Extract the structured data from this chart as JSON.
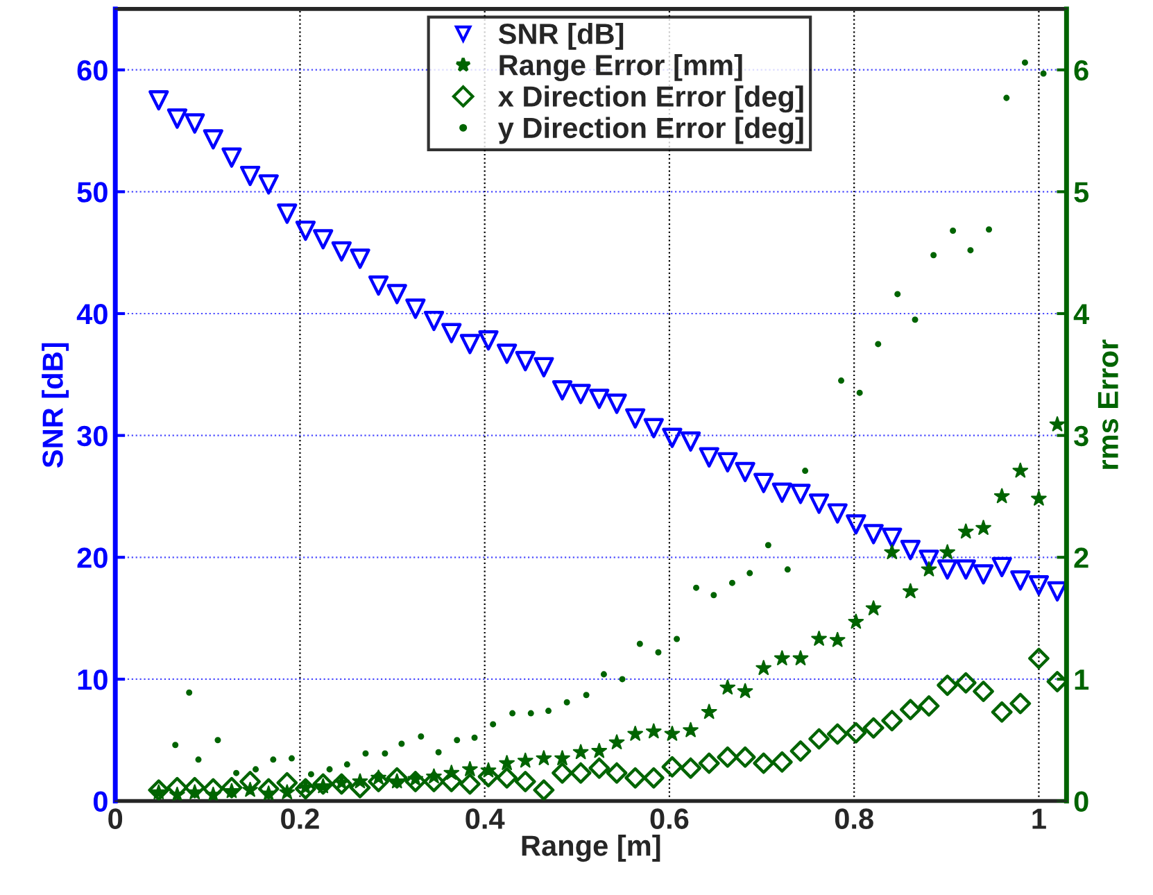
{
  "chart_data": {
    "type": "scatter",
    "xlabel": "Range [m]",
    "ylabel": "SNR [dB]",
    "y2label": "rms Error",
    "x": [
      0.047,
      0.067,
      0.086,
      0.106,
      0.126,
      0.146,
      0.166,
      0.186,
      0.206,
      0.225,
      0.245,
      0.265,
      0.285,
      0.305,
      0.325,
      0.345,
      0.364,
      0.384,
      0.404,
      0.424,
      0.444,
      0.464,
      0.484,
      0.504,
      0.524,
      0.543,
      0.563,
      0.583,
      0.603,
      0.623,
      0.643,
      0.663,
      0.682,
      0.702,
      0.722,
      0.742,
      0.762,
      0.782,
      0.802,
      0.821,
      0.841,
      0.861,
      0.881,
      0.901,
      0.921,
      0.94,
      0.96,
      0.98,
      1.0,
      1.02
    ],
    "series": [
      {
        "name": "SNR [dB]",
        "color": "#0000ff",
        "marker": "triangle",
        "values": [
          57.5,
          56.0,
          55.6,
          54.3,
          52.8,
          51.3,
          50.6,
          48.2,
          46.8,
          46.1,
          45.1,
          44.5,
          42.3,
          41.6,
          40.4,
          39.4,
          38.4,
          37.5,
          37.8,
          36.7,
          36.1,
          35.6,
          33.7,
          33.4,
          33.0,
          32.6,
          31.4,
          30.6,
          29.8,
          29.5,
          28.2,
          27.8,
          27.0,
          26.1,
          25.3,
          25.2,
          24.4,
          23.6,
          22.7,
          21.9,
          21.6,
          20.6,
          19.8,
          19.0,
          19.0,
          18.6,
          19.2,
          18.1,
          17.7,
          17.2
        ]
      },
      {
        "name": "Range Error [mm]",
        "color": "#006400",
        "marker": "star",
        "axis": "y2",
        "values": [
          0.07,
          0.05,
          0.07,
          0.05,
          0.08,
          0.09,
          0.06,
          0.07,
          0.11,
          0.12,
          0.15,
          0.16,
          0.19,
          0.16,
          0.18,
          0.2,
          0.23,
          0.26,
          0.25,
          0.31,
          0.33,
          0.35,
          0.35,
          0.4,
          0.41,
          0.48,
          0.55,
          0.57,
          0.55,
          0.58,
          0.73,
          0.93,
          0.9,
          1.09,
          1.17,
          1.17,
          1.33,
          1.32,
          1.47,
          1.58,
          2.04,
          1.72,
          1.9,
          2.04,
          2.21,
          2.24,
          2.5,
          2.71,
          2.48,
          3.09
        ]
      },
      {
        "name": "x Direction Error [deg]",
        "color": "#006400",
        "marker": "diamond",
        "axis": "y2",
        "values": [
          0.09,
          0.11,
          0.11,
          0.1,
          0.11,
          0.16,
          0.1,
          0.15,
          0.1,
          0.14,
          0.14,
          0.11,
          0.16,
          0.19,
          0.16,
          0.16,
          0.16,
          0.14,
          0.2,
          0.19,
          0.16,
          0.09,
          0.23,
          0.23,
          0.27,
          0.23,
          0.19,
          0.19,
          0.28,
          0.27,
          0.31,
          0.36,
          0.36,
          0.31,
          0.32,
          0.41,
          0.51,
          0.55,
          0.56,
          0.6,
          0.66,
          0.75,
          0.78,
          0.95,
          0.97,
          0.9,
          0.73,
          0.8,
          1.17,
          0.98
        ]
      },
      {
        "name": "y Direction Error [deg]",
        "color": "#006400",
        "marker": "circle",
        "axis": "y2",
        "x": [
          0.065,
          0.08,
          0.09,
          0.111,
          0.131,
          0.152,
          0.171,
          0.191,
          0.212,
          0.232,
          0.251,
          0.271,
          0.292,
          0.31,
          0.331,
          0.35,
          0.37,
          0.389,
          0.409,
          0.43,
          0.45,
          0.469,
          0.489,
          0.51,
          0.529,
          0.549,
          0.568,
          0.588,
          0.608,
          0.629,
          0.648,
          0.668,
          0.687,
          0.707,
          0.728,
          0.747,
          0.786,
          0.806,
          0.826,
          0.847,
          0.866,
          0.886,
          0.907,
          0.926,
          0.946,
          0.965,
          0.985,
          1.005
        ],
        "values": [
          0.46,
          0.89,
          0.34,
          0.5,
          0.23,
          0.26,
          0.34,
          0.35,
          0.22,
          0.26,
          0.3,
          0.39,
          0.39,
          0.47,
          0.53,
          0.4,
          0.5,
          0.52,
          0.63,
          0.72,
          0.72,
          0.74,
          0.81,
          0.87,
          1.04,
          1.0,
          1.29,
          1.22,
          1.33,
          1.75,
          1.69,
          1.79,
          1.87,
          2.1,
          1.9,
          2.71,
          3.45,
          3.35,
          3.75,
          4.16,
          3.95,
          4.48,
          4.68,
          4.52,
          4.69,
          5.77,
          6.06,
          5.97
        ]
      }
    ],
    "xlim": [
      0,
      1.03
    ],
    "xticks": [
      0,
      0.2,
      0.4,
      0.6,
      0.8,
      1
    ],
    "ylim": [
      0,
      65
    ],
    "yticks": [
      0,
      10,
      20,
      30,
      40,
      50,
      60
    ],
    "y2lim": [
      0,
      6.5
    ],
    "y2ticks": [
      0,
      1,
      2,
      3,
      4,
      5,
      6
    ],
    "grid": true,
    "legend": "top"
  }
}
